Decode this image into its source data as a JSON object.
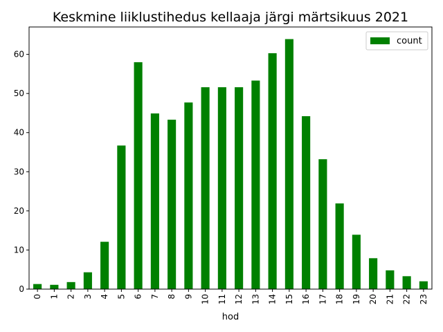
{
  "chart_data": {
    "type": "bar",
    "title": "Keskmine liiklustihedus kellaaja järgi märtsikuus 2021",
    "xlabel": "hod",
    "ylabel": "",
    "categories": [
      "0",
      "1",
      "2",
      "3",
      "4",
      "5",
      "6",
      "7",
      "8",
      "9",
      "10",
      "11",
      "12",
      "13",
      "14",
      "15",
      "16",
      "17",
      "18",
      "19",
      "20",
      "21",
      "22",
      "23"
    ],
    "series": [
      {
        "name": "count",
        "color": "#008000",
        "values": [
          1.3,
          1.1,
          1.8,
          4.3,
          12.1,
          36.7,
          58.0,
          44.9,
          43.3,
          47.7,
          51.6,
          51.6,
          51.6,
          53.3,
          60.3,
          63.9,
          44.2,
          33.2,
          21.9,
          13.9,
          7.9,
          4.8,
          3.3,
          2.0
        ]
      }
    ],
    "ylim": [
      0,
      67
    ],
    "yticks": [
      0,
      10,
      20,
      30,
      40,
      50,
      60
    ],
    "legend_position": "top-right",
    "grid": false
  }
}
